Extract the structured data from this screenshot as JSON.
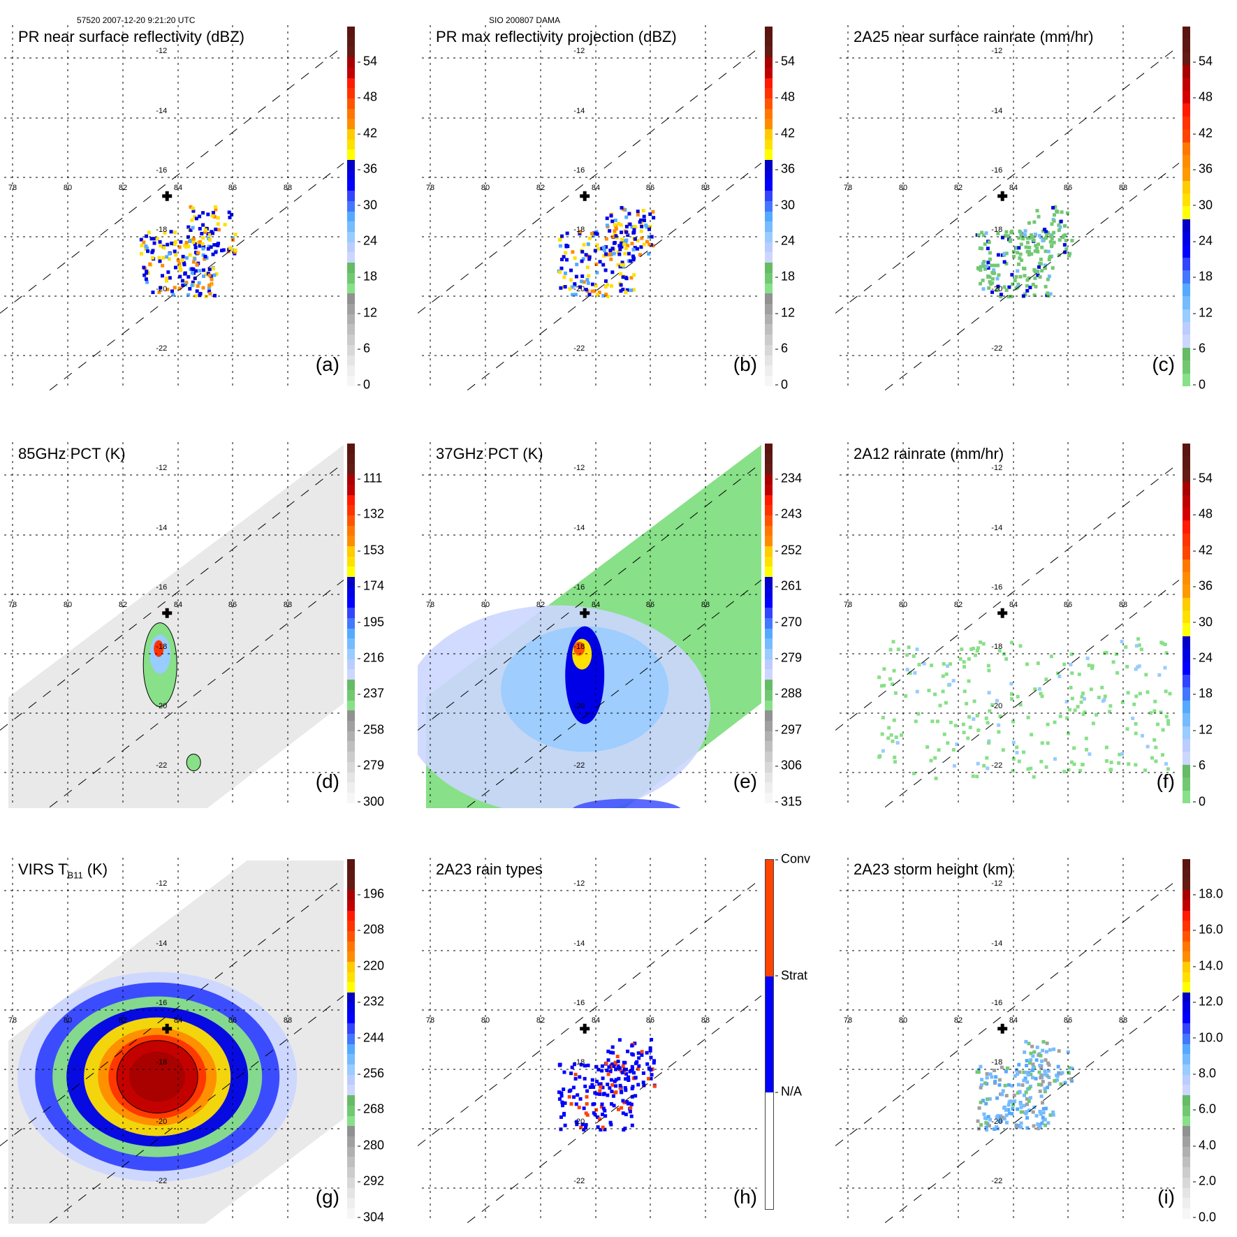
{
  "header": {
    "left": "57520 2007-12-20 9:21:20 UTC",
    "center": "SIO 200807 DAMA"
  },
  "grid": {
    "lon_labels": [
      "78",
      "80",
      "82",
      "84",
      "86",
      "88"
    ],
    "lat_labels": [
      "-12",
      "-14",
      "-16",
      "-18",
      "-20",
      "-22"
    ]
  },
  "panels": [
    {
      "id": "a",
      "title": "PR near surface reflectivity (dBZ)",
      "label": "(a)",
      "cbar_type": "dbz",
      "ticks": [
        "54",
        "48",
        "42",
        "36",
        "30",
        "24",
        "18",
        "12",
        "6",
        "0"
      ],
      "swath": "pr",
      "field": "pr_refl"
    },
    {
      "id": "b",
      "title": "PR max reflectivity projection (dBZ)",
      "label": "(b)",
      "cbar_type": "dbz",
      "ticks": [
        "54",
        "48",
        "42",
        "36",
        "30",
        "24",
        "18",
        "12",
        "6",
        "0"
      ],
      "swath": "pr",
      "field": "pr_max"
    },
    {
      "id": "c",
      "title": "2A25 near surface rainrate (mm/hr)",
      "label": "(c)",
      "cbar_type": "rain",
      "ticks": [
        "54",
        "48",
        "42",
        "36",
        "30",
        "24",
        "18",
        "12",
        "6",
        "0"
      ],
      "swath": "pr",
      "field": "pr_rain"
    },
    {
      "id": "d",
      "title": "85GHz PCT (K)",
      "label": "(d)",
      "cbar_type": "dbz",
      "ticks": [
        "111",
        "132",
        "153",
        "174",
        "195",
        "216",
        "237",
        "258",
        "279",
        "300"
      ],
      "swath": "tmi",
      "field": "pct85"
    },
    {
      "id": "e",
      "title": "37GHz PCT (K)",
      "label": "(e)",
      "cbar_type": "dbz",
      "ticks": [
        "234",
        "243",
        "252",
        "261",
        "270",
        "279",
        "288",
        "297",
        "306",
        "315"
      ],
      "swath": "tmi",
      "field": "pct37"
    },
    {
      "id": "f",
      "title": "2A12 rainrate (mm/hr)",
      "label": "(f)",
      "cbar_type": "rain",
      "ticks": [
        "54",
        "48",
        "42",
        "36",
        "30",
        "24",
        "18",
        "12",
        "6",
        "0"
      ],
      "swath": "tmi",
      "field": "tmi_rain"
    },
    {
      "id": "g",
      "title_main": "VIRS T",
      "title_sub": "B11",
      "title_tail": " (K)",
      "label": "(g)",
      "cbar_type": "dbz",
      "ticks": [
        "196",
        "208",
        "220",
        "232",
        "244",
        "256",
        "268",
        "280",
        "292",
        "304"
      ],
      "swath": "virs",
      "field": "virs"
    },
    {
      "id": "h",
      "title": "2A23 rain types",
      "label": "(h)",
      "cbar_type": "types",
      "ticks": [
        "Conv",
        "Strat",
        "N/A"
      ],
      "swath": "pr",
      "field": "raintype"
    },
    {
      "id": "i",
      "title": "2A23 storm height (km)",
      "label": "(i)",
      "cbar_type": "dbz",
      "ticks": [
        "18.0",
        "16.0",
        "14.0",
        "12.0",
        "10.0",
        "8.0",
        "6.0",
        "4.0",
        "2.0",
        "0.0"
      ],
      "swath": "pr",
      "field": "height"
    }
  ],
  "colors": {
    "dbz_scale": [
      "#5a1510",
      "#5e1812",
      "#651a14",
      "#a80000",
      "#c00000",
      "#ff1a00",
      "#ff3300",
      "#ff5500",
      "#ff7700",
      "#ff8c00",
      "#ffcc00",
      "#ffe000",
      "#ffff00",
      "#0000c8",
      "#0000e6",
      "#0000ff",
      "#3344ff",
      "#4477ff",
      "#55aaff",
      "#77bbff",
      "#99ccff",
      "#bbccff",
      "#ccd6ff",
      "#66bb66",
      "#72c872",
      "#88e088",
      "#919191",
      "#a0a0a0",
      "#b0b0b0",
      "#bfbfbf",
      "#cccccc",
      "#d8d8d8",
      "#e4e4e4",
      "#eeeeee",
      "#f6f6f6"
    ],
    "rain_scale": [
      "#5a1510",
      "#5e1812",
      "#651a14",
      "#a80000",
      "#c00000",
      "#d40000",
      "#ff1a00",
      "#ff3300",
      "#ff4400",
      "#ff7700",
      "#ff8c00",
      "#ff9900",
      "#ffcc00",
      "#ffe000",
      "#ffff00",
      "#0000c8",
      "#0000e6",
      "#0000ff",
      "#3344ff",
      "#4477ff",
      "#55aaff",
      "#77bbff",
      "#99ccff",
      "#bbccff",
      "#ccd6ff",
      "#66bb66",
      "#72c872",
      "#88e088"
    ],
    "types_scale": [
      "#ff4400",
      "#0000ff",
      "#ffffff"
    ]
  }
}
